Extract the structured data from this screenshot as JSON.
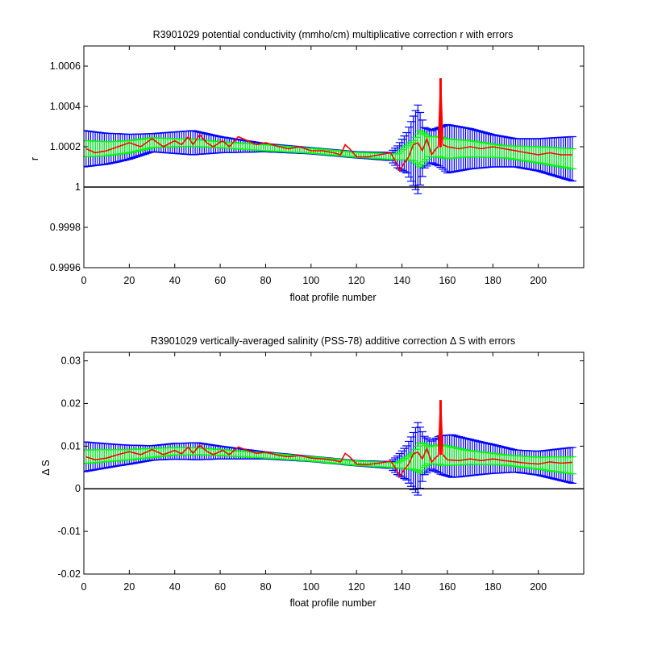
{
  "figure": {
    "background": "#ffffff",
    "colors": {
      "outer_error": "#0000ff",
      "inner_error": "#00ff00",
      "correction": "#ff0000",
      "reference": "#000000"
    }
  },
  "chart_data": [
    {
      "type": "line",
      "title": "R3901029 potential conductivity (mmho/cm) multiplicative correction r with errors",
      "xlabel": "float profile number",
      "ylabel": "r",
      "xlim": [
        0,
        220
      ],
      "ylim": [
        0.9996,
        1.0007
      ],
      "xticks": [
        0,
        20,
        40,
        60,
        80,
        100,
        120,
        140,
        160,
        180,
        200
      ],
      "xtick_labels": [
        "0",
        "20",
        "40",
        "60",
        "80",
        "100",
        "120",
        "140",
        "160",
        "180",
        "200"
      ],
      "yticks": [
        0.9996,
        0.9998,
        1.0,
        1.0002,
        1.0004,
        1.0006
      ],
      "ytick_labels": [
        "0.9996",
        "0.9998",
        "1",
        "1.0002",
        "1.0004",
        "1.0006"
      ],
      "reference_line": 1.0,
      "grid": false,
      "legend": "none",
      "profiles": [
        0,
        215
      ],
      "spike_profile": 157,
      "series_center": [
        [
          0,
          1.00019
        ],
        [
          10,
          1.00019
        ],
        [
          20,
          1.0002
        ],
        [
          30,
          1.00022
        ],
        [
          40,
          1.00022
        ],
        [
          48,
          1.00022
        ],
        [
          60,
          1.00021
        ],
        [
          80,
          1.000195
        ],
        [
          100,
          1.00018
        ],
        [
          120,
          1.00016
        ],
        [
          138,
          1.00015
        ],
        [
          142,
          1.00017
        ],
        [
          148,
          1.00019
        ],
        [
          152,
          1.0002
        ],
        [
          156,
          1.0002
        ],
        [
          160,
          1.00019
        ],
        [
          170,
          1.00019
        ],
        [
          180,
          1.00018
        ],
        [
          190,
          1.00017
        ],
        [
          200,
          1.00016
        ],
        [
          215,
          1.00014
        ]
      ],
      "series_outer_halfwidth": [
        [
          0,
          9e-05
        ],
        [
          15,
          7e-05
        ],
        [
          30,
          4.5e-05
        ],
        [
          48,
          6e-05
        ],
        [
          60,
          4e-05
        ],
        [
          80,
          2e-05
        ],
        [
          100,
          1.5e-05
        ],
        [
          120,
          1.5e-05
        ],
        [
          135,
          2e-05
        ],
        [
          142,
          0.0001
        ],
        [
          147,
          0.00022
        ],
        [
          150,
          0.0001
        ],
        [
          153,
          8e-05
        ],
        [
          157,
          0.0001
        ],
        [
          160,
          0.00012
        ],
        [
          170,
          0.0001
        ],
        [
          180,
          8e-05
        ],
        [
          190,
          7e-05
        ],
        [
          200,
          8e-05
        ],
        [
          215,
          0.00011
        ]
      ],
      "series_inner_halfwidth": [
        [
          0,
          4e-05
        ],
        [
          20,
          3e-05
        ],
        [
          40,
          2e-05
        ],
        [
          60,
          1.5e-05
        ],
        [
          80,
          1.5e-05
        ],
        [
          100,
          1.2e-05
        ],
        [
          120,
          1.2e-05
        ],
        [
          138,
          1.5e-05
        ],
        [
          145,
          5e-05
        ],
        [
          148,
          9e-05
        ],
        [
          152,
          5e-05
        ],
        [
          158,
          5e-05
        ],
        [
          170,
          4e-05
        ],
        [
          185,
          3e-05
        ],
        [
          200,
          4e-05
        ],
        [
          215,
          5e-05
        ]
      ],
      "correction": [
        [
          1,
          1.00019
        ],
        [
          5,
          1.00017
        ],
        [
          10,
          1.00018
        ],
        [
          15,
          1.0002
        ],
        [
          20,
          1.00022
        ],
        [
          25,
          1.0002
        ],
        [
          30,
          1.00024
        ],
        [
          35,
          1.0002
        ],
        [
          40,
          1.00023
        ],
        [
          43,
          1.00021
        ],
        [
          46,
          1.00025
        ],
        [
          48,
          1.00021
        ],
        [
          51,
          1.00026
        ],
        [
          54,
          1.00022
        ],
        [
          57,
          1.0002
        ],
        [
          61,
          1.00023
        ],
        [
          64,
          1.0002
        ],
        [
          68,
          1.00025
        ],
        [
          72,
          1.00023
        ],
        [
          76,
          1.00021
        ],
        [
          80,
          1.00022
        ],
        [
          86,
          1.0002
        ],
        [
          90,
          1.00019
        ],
        [
          95,
          1.0002
        ],
        [
          100,
          1.00018
        ],
        [
          105,
          1.00018
        ],
        [
          110,
          1.00017
        ],
        [
          113,
          1.00016
        ],
        [
          115,
          1.00021
        ],
        [
          117,
          1.00019
        ],
        [
          120,
          1.00015
        ],
        [
          125,
          1.00015
        ],
        [
          130,
          1.00016
        ],
        [
          135,
          1.00017
        ],
        [
          137,
          1.00013
        ],
        [
          139,
          1.00008
        ],
        [
          141,
          1.00012
        ],
        [
          143,
          1.00015
        ],
        [
          145,
          1.00021
        ],
        [
          147,
          1.00022
        ],
        [
          149,
          1.00018
        ],
        [
          151,
          1.00024
        ],
        [
          153,
          1.00016
        ],
        [
          155,
          1.00019
        ],
        [
          156,
          1.0002
        ],
        [
          157,
          1.00054
        ],
        [
          158,
          1.00021
        ],
        [
          160,
          1.0002
        ],
        [
          165,
          1.00019
        ],
        [
          170,
          1.0002
        ],
        [
          175,
          1.00019
        ],
        [
          180,
          1.0002
        ],
        [
          185,
          1.00019
        ],
        [
          190,
          1.00018
        ],
        [
          195,
          1.00017
        ],
        [
          200,
          1.00016
        ],
        [
          205,
          1.00017
        ],
        [
          210,
          1.00016
        ],
        [
          215,
          1.00016
        ]
      ]
    },
    {
      "type": "line",
      "title": "R3901029 vertically-averaged salinity (PSS-78) additive correction Δ S with errors",
      "xlabel": "float profile number",
      "ylabel": "Δ S",
      "xlim": [
        0,
        220
      ],
      "ylim": [
        -0.02,
        0.032
      ],
      "xticks": [
        0,
        20,
        40,
        60,
        80,
        100,
        120,
        140,
        160,
        180,
        200
      ],
      "xtick_labels": [
        "0",
        "20",
        "40",
        "60",
        "80",
        "100",
        "120",
        "140",
        "160",
        "180",
        "200"
      ],
      "yticks": [
        -0.02,
        -0.01,
        0,
        0.01,
        0.02,
        0.03
      ],
      "ytick_labels": [
        "-0.02",
        "-0.01",
        "0",
        "0.01",
        "0.02",
        "0.03"
      ],
      "reference_line": 0,
      "grid": false,
      "legend": "none",
      "profiles": [
        0,
        215
      ],
      "spike_profile": 157,
      "series_center": [
        [
          0,
          0.0075
        ],
        [
          20,
          0.008
        ],
        [
          40,
          0.0088
        ],
        [
          50,
          0.0088
        ],
        [
          60,
          0.0085
        ],
        [
          80,
          0.0078
        ],
        [
          100,
          0.007
        ],
        [
          120,
          0.006
        ],
        [
          138,
          0.0055
        ],
        [
          145,
          0.0065
        ],
        [
          150,
          0.0078
        ],
        [
          156,
          0.008
        ],
        [
          165,
          0.0075
        ],
        [
          180,
          0.007
        ],
        [
          200,
          0.006
        ],
        [
          215,
          0.0055
        ]
      ],
      "series_outer_halfwidth": [
        [
          0,
          0.0035
        ],
        [
          15,
          0.0025
        ],
        [
          30,
          0.0017
        ],
        [
          50,
          0.002
        ],
        [
          60,
          0.0015
        ],
        [
          80,
          0.0008
        ],
        [
          100,
          0.0006
        ],
        [
          120,
          0.0006
        ],
        [
          135,
          0.0008
        ],
        [
          142,
          0.004
        ],
        [
          147,
          0.0085
        ],
        [
          150,
          0.0045
        ],
        [
          153,
          0.0033
        ],
        [
          157,
          0.0045
        ],
        [
          162,
          0.005
        ],
        [
          175,
          0.0038
        ],
        [
          190,
          0.0026
        ],
        [
          200,
          0.0028
        ],
        [
          215,
          0.0042
        ]
      ],
      "series_inner_halfwidth": [
        [
          0,
          0.0016
        ],
        [
          20,
          0.0012
        ],
        [
          40,
          0.0009
        ],
        [
          60,
          0.0007
        ],
        [
          80,
          0.0006
        ],
        [
          100,
          0.0005
        ],
        [
          120,
          0.0005
        ],
        [
          138,
          0.0006
        ],
        [
          145,
          0.002
        ],
        [
          148,
          0.0035
        ],
        [
          152,
          0.002
        ],
        [
          158,
          0.0024
        ],
        [
          170,
          0.0016
        ],
        [
          185,
          0.0012
        ],
        [
          200,
          0.0014
        ],
        [
          215,
          0.002
        ]
      ],
      "correction": [
        [
          1,
          0.0075
        ],
        [
          5,
          0.0068
        ],
        [
          10,
          0.0072
        ],
        [
          15,
          0.008
        ],
        [
          20,
          0.0087
        ],
        [
          25,
          0.008
        ],
        [
          30,
          0.0092
        ],
        [
          35,
          0.008
        ],
        [
          40,
          0.009
        ],
        [
          43,
          0.0082
        ],
        [
          46,
          0.0098
        ],
        [
          48,
          0.0083
        ],
        [
          51,
          0.0102
        ],
        [
          54,
          0.0088
        ],
        [
          57,
          0.008
        ],
        [
          61,
          0.009
        ],
        [
          64,
          0.008
        ],
        [
          68,
          0.0098
        ],
        [
          72,
          0.009
        ],
        [
          76,
          0.0083
        ],
        [
          80,
          0.0086
        ],
        [
          86,
          0.0078
        ],
        [
          90,
          0.0075
        ],
        [
          95,
          0.0078
        ],
        [
          100,
          0.0072
        ],
        [
          105,
          0.007
        ],
        [
          110,
          0.0067
        ],
        [
          113,
          0.0063
        ],
        [
          115,
          0.0083
        ],
        [
          117,
          0.0075
        ],
        [
          120,
          0.0058
        ],
        [
          125,
          0.0057
        ],
        [
          130,
          0.006
        ],
        [
          135,
          0.0065
        ],
        [
          137,
          0.005
        ],
        [
          139,
          0.0028
        ],
        [
          141,
          0.0045
        ],
        [
          143,
          0.0058
        ],
        [
          145,
          0.0082
        ],
        [
          147,
          0.0086
        ],
        [
          149,
          0.007
        ],
        [
          151,
          0.0095
        ],
        [
          153,
          0.0062
        ],
        [
          155,
          0.0074
        ],
        [
          156,
          0.0078
        ],
        [
          157,
          0.0208
        ],
        [
          158,
          0.008
        ],
        [
          160,
          0.0068
        ],
        [
          165,
          0.0066
        ],
        [
          170,
          0.007
        ],
        [
          175,
          0.0066
        ],
        [
          180,
          0.007
        ],
        [
          185,
          0.0066
        ],
        [
          190,
          0.0063
        ],
        [
          195,
          0.006
        ],
        [
          200,
          0.0058
        ],
        [
          205,
          0.0063
        ],
        [
          210,
          0.006
        ],
        [
          215,
          0.0062
        ]
      ]
    }
  ]
}
